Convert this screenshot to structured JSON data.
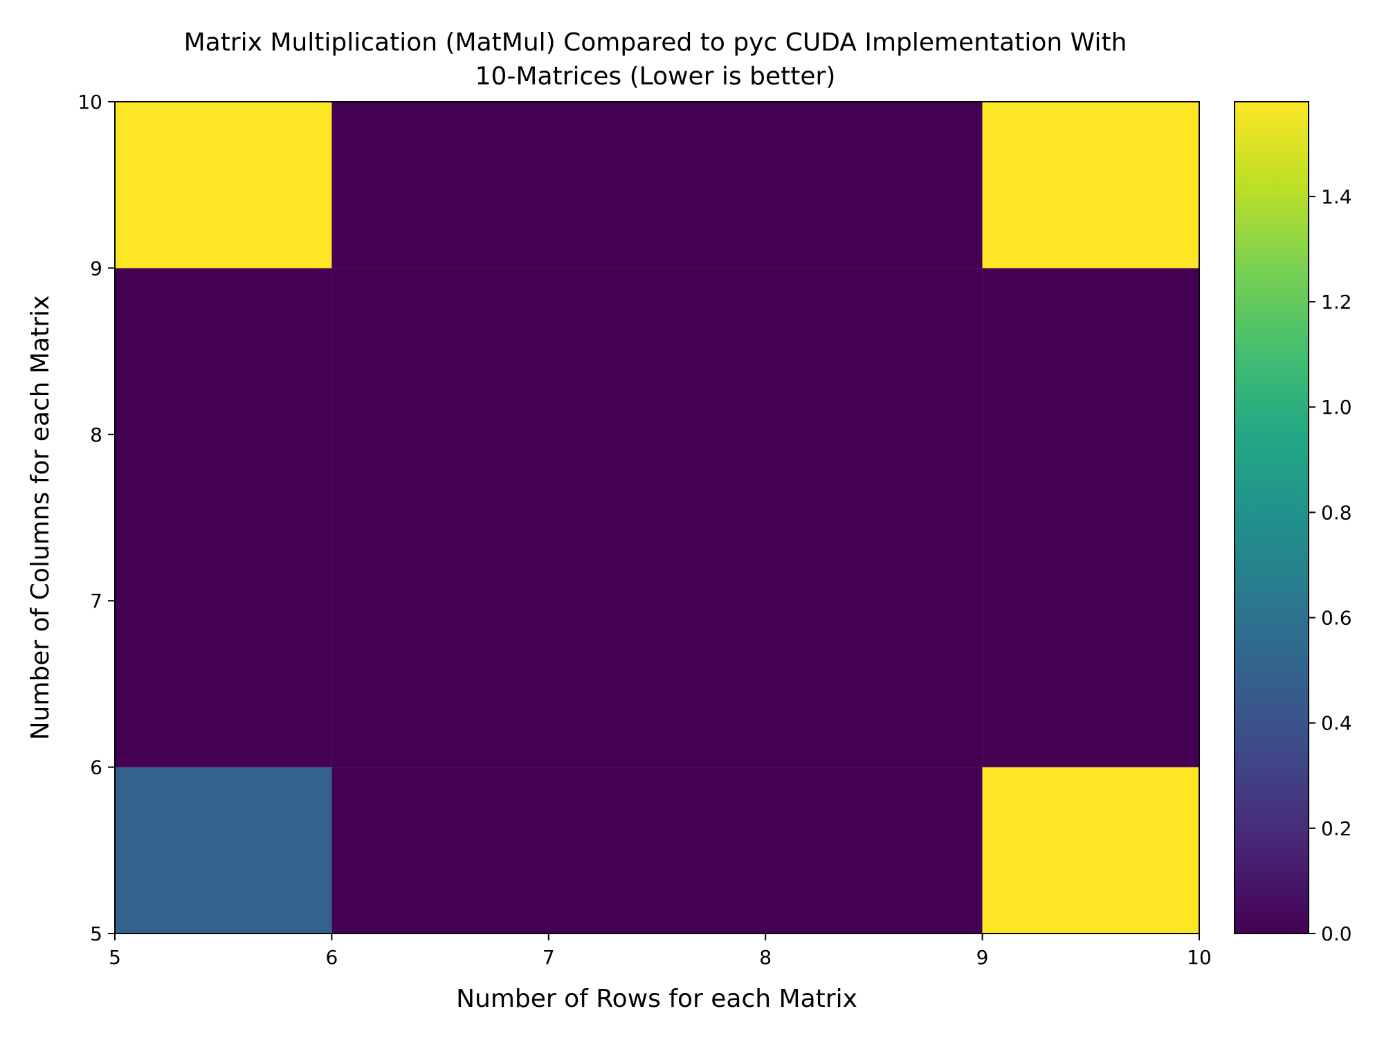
{
  "chart_data": {
    "type": "heatmap",
    "title_lines": [
      "Matrix Multiplication (MatMul) Compared to pyc CUDA Implementation With",
      "10-Matrices (Lower is better)"
    ],
    "xlabel": "Number of Rows for each Matrix",
    "ylabel": "Number of Columns for each Matrix",
    "x_edges": [
      5,
      6,
      9,
      10
    ],
    "y_edges": [
      5,
      6,
      9,
      10
    ],
    "x_ticks": [
      "5",
      "6",
      "7",
      "8",
      "9",
      "10"
    ],
    "y_ticks": [
      "5",
      "6",
      "7",
      "8",
      "9",
      "10"
    ],
    "xlim": [
      5,
      10
    ],
    "ylim": [
      5,
      10
    ],
    "cells": [
      {
        "x": [
          5,
          6
        ],
        "y": [
          5,
          6
        ],
        "value": 0.5
      },
      {
        "x": [
          6,
          9
        ],
        "y": [
          5,
          6
        ],
        "value": 0.0
      },
      {
        "x": [
          9,
          10
        ],
        "y": [
          5,
          6
        ],
        "value": 1.58
      },
      {
        "x": [
          5,
          6
        ],
        "y": [
          6,
          9
        ],
        "value": 0.0
      },
      {
        "x": [
          6,
          9
        ],
        "y": [
          6,
          9
        ],
        "value": 0.0
      },
      {
        "x": [
          9,
          10
        ],
        "y": [
          6,
          9
        ],
        "value": 0.0
      },
      {
        "x": [
          5,
          6
        ],
        "y": [
          9,
          10
        ],
        "value": 1.58
      },
      {
        "x": [
          6,
          9
        ],
        "y": [
          9,
          10
        ],
        "value": 0.0
      },
      {
        "x": [
          9,
          10
        ],
        "y": [
          9,
          10
        ],
        "value": 1.58
      }
    ],
    "colorbar": {
      "min": 0.0,
      "max": 1.58,
      "ticks": [
        "0.0",
        "0.2",
        "0.4",
        "0.6",
        "0.8",
        "1.0",
        "1.2",
        "1.4"
      ],
      "colormap": "viridis"
    },
    "grid": false,
    "legend": "none"
  }
}
